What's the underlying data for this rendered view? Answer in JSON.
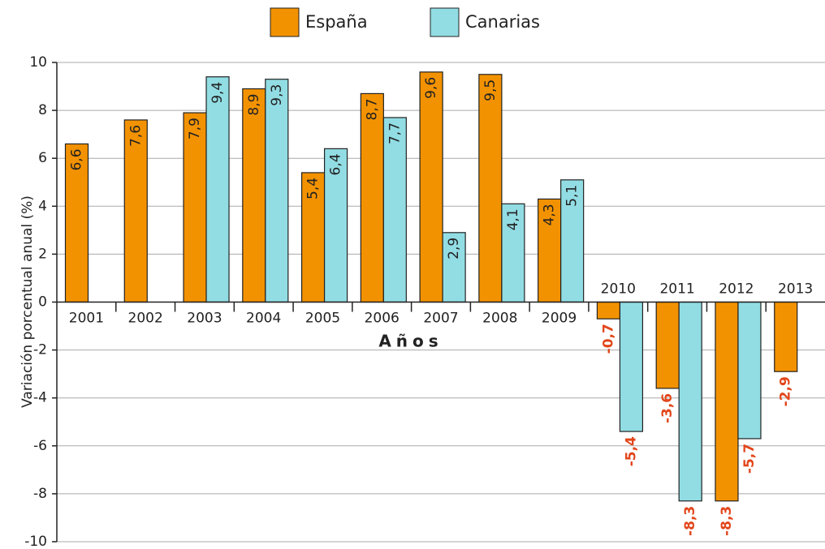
{
  "chart_data": {
    "type": "bar",
    "x_label": "Años",
    "y_label": "Variación porcentual anual (%)",
    "categories": [
      "2001",
      "2002",
      "2003",
      "2004",
      "2005",
      "2006",
      "2007",
      "2008",
      "2009",
      "2010",
      "2011",
      "2012",
      "2013"
    ],
    "series": [
      {
        "name": "España",
        "color": "#f39200",
        "values": [
          6.6,
          7.6,
          7.9,
          8.9,
          5.4,
          8.7,
          9.6,
          9.5,
          4.3,
          -0.7,
          -3.6,
          -8.3,
          -2.9
        ],
        "value_labels": [
          "6,6",
          "7,6",
          "7,9",
          "8,9",
          "5,4",
          "8,7",
          "9,6",
          "9,5",
          "4,3",
          "-0,7",
          "-3,6",
          "-8,3",
          "-2,9"
        ]
      },
      {
        "name": "Canarias",
        "color": "#92dde4",
        "values": [
          null,
          null,
          9.4,
          9.3,
          6.4,
          7.7,
          2.9,
          4.1,
          5.1,
          -5.4,
          -8.3,
          -5.7,
          null
        ],
        "value_labels": [
          null,
          null,
          "9,4",
          "9,3",
          "6,4",
          "7,7",
          "2,9",
          "4,1",
          "5,1",
          "-5,4",
          "-8,3",
          "-5,7",
          null
        ]
      }
    ],
    "ylim": [
      -10,
      10
    ],
    "yticks": [
      -10,
      -8,
      -6,
      -4,
      -2,
      0,
      2,
      4,
      6,
      8,
      10
    ],
    "grid": true,
    "legend": "top"
  }
}
